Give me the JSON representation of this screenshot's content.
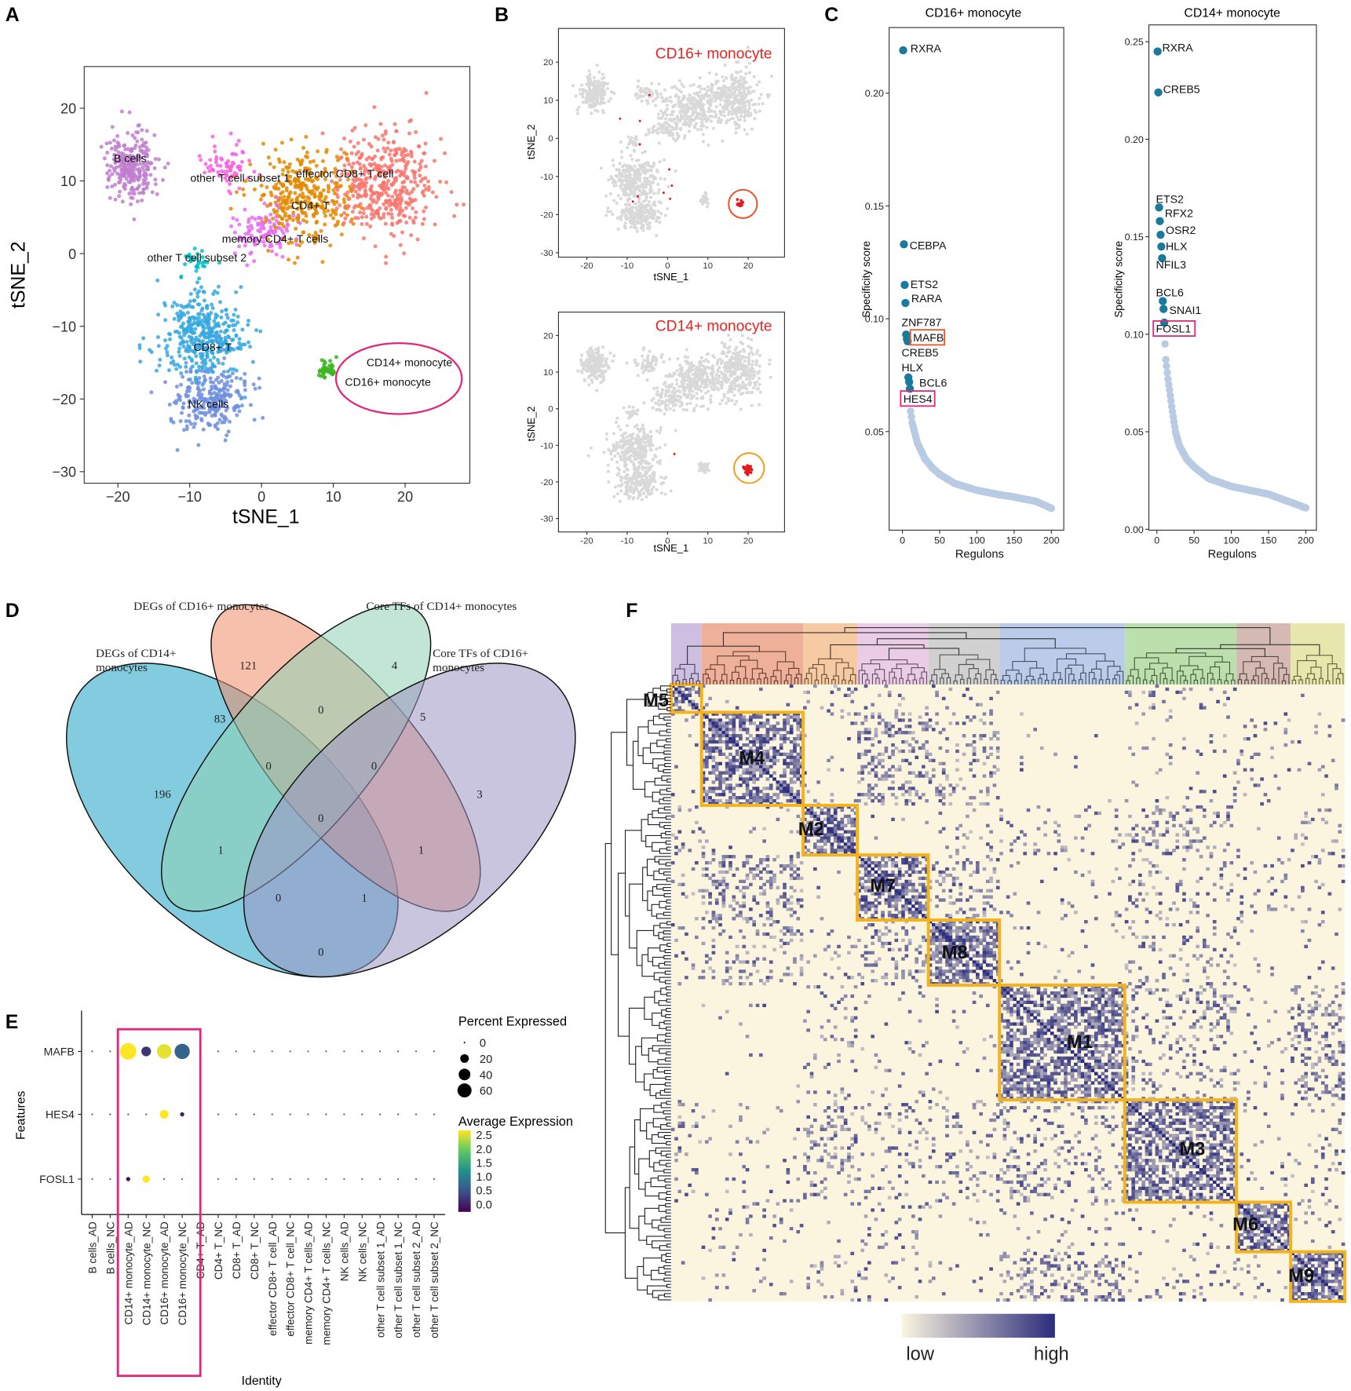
{
  "panel_labels": {
    "a": "A",
    "b": "B",
    "c": "C",
    "d": "D",
    "e": "E",
    "f": "F"
  },
  "chart_data": [
    {
      "id": "A",
      "type": "scatter",
      "xlabel": "tSNE_1",
      "ylabel": "tSNE_2",
      "xticks": [
        -20,
        -10,
        0,
        10,
        20
      ],
      "yticks": [
        20,
        10,
        0,
        -10,
        -20,
        -30
      ],
      "clusters": [
        {
          "name": "B cells",
          "color": "#c07ecf",
          "center": [
            -18,
            12
          ],
          "spread": [
            3,
            4.2
          ],
          "n": 260
        },
        {
          "name": "other T cell subset 1",
          "color": "#f564e3",
          "center": [
            -5,
            12
          ],
          "spread": [
            3,
            3
          ],
          "n": 70
        },
        {
          "name": "effector CD8+ T cell",
          "color": "#f8766d",
          "center": [
            17,
            10
          ],
          "spread": [
            6,
            6.5
          ],
          "n": 420
        },
        {
          "name": "CD4+ T",
          "color": "#e38900",
          "center": [
            6,
            8
          ],
          "spread": [
            6,
            5.5
          ],
          "n": 330
        },
        {
          "name": "memory CD4+ T cells",
          "color": "#e76bf3",
          "center": [
            0,
            3
          ],
          "spread": [
            4,
            3
          ],
          "n": 110
        },
        {
          "name": "other T cell subset 2",
          "color": "#00bfc4",
          "center": [
            -9,
            -1
          ],
          "spread": [
            2,
            1.5
          ],
          "n": 30
        },
        {
          "name": "CD8+ T",
          "color": "#35a8e0",
          "center": [
            -8,
            -11
          ],
          "spread": [
            5.5,
            5
          ],
          "n": 380
        },
        {
          "name": "NK cells",
          "color": "#6f8fe0",
          "center": [
            -7,
            -20
          ],
          "spread": [
            5,
            4
          ],
          "n": 260
        },
        {
          "name": "monocytes",
          "color": "#3cb521",
          "center": [
            9,
            -16
          ],
          "spread": [
            1,
            1.2
          ],
          "n": 45
        }
      ],
      "labels": [
        {
          "text": "B cells",
          "x": -18.3,
          "y": 12.6
        },
        {
          "text": "other T cell subset 1",
          "x": -3,
          "y": 9.9
        },
        {
          "text": "effector CD8+ T cell",
          "x": 11.6,
          "y": 10.5
        },
        {
          "text": "CD4+ T",
          "x": 6.8,
          "y": 6.1
        },
        {
          "text": "memory CD4+ T cells",
          "x": 1.9,
          "y": 1.5
        },
        {
          "text": "other T cell subset 2",
          "x": -9,
          "y": -1.1
        },
        {
          "text": "CD8+ T",
          "x": -6.8,
          "y": -13.4
        },
        {
          "text": "NK cells",
          "x": -7.4,
          "y": -21.2
        },
        {
          "text": "CD14+ monocyte",
          "x": 20.6,
          "y": -15.5
        },
        {
          "text": "CD16+ monocyte",
          "x": 17.6,
          "y": -18.2
        }
      ],
      "highlight_ellipse_color": "#e0267d"
    },
    {
      "id": "B1",
      "type": "scatter",
      "title": "CD16+ monocyte",
      "title_color": "#e8231f",
      "xlabel": "tSNE_1",
      "ylabel": "tSNE_2",
      "xticks": [
        -20,
        -10,
        0,
        10,
        20
      ],
      "yticks": [
        20,
        10,
        0,
        -10,
        -20,
        -30
      ],
      "background_color": "#d9d9d9",
      "highlight_color": "#e41a1c",
      "circle_color": "#e8562a"
    },
    {
      "id": "B2",
      "type": "scatter",
      "title": "CD14+ monocyte",
      "title_color": "#e8231f",
      "xlabel": "tSNE_1",
      "ylabel": "tSNE_2",
      "xticks": [
        -20,
        -10,
        0,
        10,
        20
      ],
      "yticks": [
        20,
        10,
        0,
        -10,
        -20,
        -30
      ],
      "background_color": "#d9d9d9",
      "highlight_color": "#e41a1c",
      "circle_color": "#f0a020"
    },
    {
      "id": "C1",
      "type": "scatter",
      "title": "CD16+ monocyte",
      "xlabel": "Regulons",
      "ylabel": "Specificity score",
      "xticks": [
        0,
        50,
        100,
        150,
        200
      ],
      "yticks": [
        0.05,
        0.1,
        0.15,
        0.2
      ],
      "ytick_labels": [
        "0.05",
        "0.10",
        "0.15",
        "0.20"
      ],
      "top_color": "#1a7a9c",
      "rest_color": "#b9cbe3",
      "labeled": [
        {
          "name": "RXRA",
          "rank": 1,
          "score": 0.219
        },
        {
          "name": "CEBPA",
          "rank": 2,
          "score": 0.133
        },
        {
          "name": "ETS2",
          "rank": 3,
          "score": 0.115
        },
        {
          "name": "RARA",
          "rank": 4,
          "score": 0.107
        },
        {
          "name": "ZNF787",
          "rank": 5,
          "score": 0.093
        },
        {
          "name": "MAFB",
          "rank": 6,
          "score": 0.091
        },
        {
          "name": "CREB5",
          "rank": 7,
          "score": 0.09
        },
        {
          "name": "HLX",
          "rank": 8,
          "score": 0.074
        },
        {
          "name": "BCL6",
          "rank": 9,
          "score": 0.072
        },
        {
          "name": "HES4",
          "rank": 10,
          "score": 0.069
        }
      ],
      "tail": [
        [
          11,
          0.059
        ],
        [
          13,
          0.054
        ],
        [
          20,
          0.045
        ],
        [
          30,
          0.038
        ],
        [
          40,
          0.034
        ],
        [
          50,
          0.031
        ],
        [
          70,
          0.027
        ],
        [
          100,
          0.024
        ],
        [
          130,
          0.022
        ],
        [
          150,
          0.021
        ],
        [
          180,
          0.019
        ],
        [
          200,
          0.016
        ]
      ],
      "boxed": [
        {
          "name": "MAFB",
          "color": "#e8562a"
        },
        {
          "name": "HES4",
          "color": "#e0267d"
        }
      ]
    },
    {
      "id": "C2",
      "type": "scatter",
      "title": "CD14+ monocyte",
      "xlabel": "Regulons",
      "ylabel": "Specificity score",
      "xticks": [
        0,
        50,
        100,
        150,
        200
      ],
      "yticks": [
        0.0,
        0.05,
        0.1,
        0.15,
        0.2,
        0.25
      ],
      "ytick_labels": [
        "0.00",
        "0.05",
        "0.10",
        "0.15",
        "0.20",
        "0.25"
      ],
      "top_color": "#1a7a9c",
      "rest_color": "#b9cbe3",
      "labeled": [
        {
          "name": "RXRA",
          "rank": 1,
          "score": 0.245
        },
        {
          "name": "CREB5",
          "rank": 2,
          "score": 0.224
        },
        {
          "name": "ETS2",
          "rank": 3,
          "score": 0.165
        },
        {
          "name": "RFX2",
          "rank": 4,
          "score": 0.158
        },
        {
          "name": "OSR2",
          "rank": 5,
          "score": 0.151
        },
        {
          "name": "HLX",
          "rank": 6,
          "score": 0.145
        },
        {
          "name": "NFIL3",
          "rank": 7,
          "score": 0.139
        },
        {
          "name": "BCL6",
          "rank": 8,
          "score": 0.117
        },
        {
          "name": "SNAI1",
          "rank": 9,
          "score": 0.113
        },
        {
          "name": "FOSL1",
          "rank": 10,
          "score": 0.106
        }
      ],
      "tail": [
        [
          11,
          0.095
        ],
        [
          12,
          0.087
        ],
        [
          15,
          0.077
        ],
        [
          20,
          0.063
        ],
        [
          25,
          0.05
        ],
        [
          30,
          0.043
        ],
        [
          40,
          0.036
        ],
        [
          50,
          0.032
        ],
        [
          70,
          0.026
        ],
        [
          100,
          0.022
        ],
        [
          150,
          0.018
        ],
        [
          200,
          0.011
        ]
      ],
      "boxed": [
        {
          "name": "FOSL1",
          "color": "#e0267d"
        }
      ]
    },
    {
      "id": "D",
      "type": "venn",
      "sets": [
        {
          "key": "B",
          "name_lines": [
            "DEGs of CD14+",
            "monocytes"
          ],
          "color": "#1ea2c6"
        },
        {
          "key": "S",
          "name_lines": [
            "DEGs of CD16+ monocytes"
          ],
          "color": "#f08c6a"
        },
        {
          "key": "G",
          "name_lines": [
            "Core TFs of CD14+ monocytes"
          ],
          "color": "#8fd0b4"
        },
        {
          "key": "P",
          "name_lines": [
            "Core TFs of CD16+",
            "monocytes"
          ],
          "color": "#9c95c2"
        }
      ],
      "regions": [
        {
          "sets": "S",
          "value": 121
        },
        {
          "sets": "G",
          "value": 4
        },
        {
          "sets": "BS",
          "value": 83
        },
        {
          "sets": "SG",
          "value": 0
        },
        {
          "sets": "GP",
          "value": 5
        },
        {
          "sets": "B",
          "value": 196
        },
        {
          "sets": "BSG",
          "value": 0
        },
        {
          "sets": "SGP",
          "value": 0
        },
        {
          "sets": "P",
          "value": 3
        },
        {
          "sets": "BSGP",
          "value": 0
        },
        {
          "sets": "BG",
          "value": 1
        },
        {
          "sets": "SP",
          "value": 1
        },
        {
          "sets": "BGP",
          "value": 0
        },
        {
          "sets": "BSP",
          "value": 1
        },
        {
          "sets": "BP",
          "value": 0
        }
      ]
    },
    {
      "id": "E",
      "type": "dotplot",
      "xlabel": "Identity",
      "ylabel": "Features",
      "features": [
        "MAFB",
        "HES4",
        "FOSL1"
      ],
      "identities": [
        "B cells_AD",
        "B cells_NC",
        "CD14+ monocyte_AD",
        "CD14+ monocyte_NC",
        "CD16+ monocyte_AD",
        "CD16+ monocyte_NC",
        "CD4+ T_AD",
        "CD4+ T_NC",
        "CD8+ T_AD",
        "CD8+ T_NC",
        "effector CD8+ T cell_AD",
        "effector CD8+ T cell_NC",
        "memory CD4+ T cells_AD",
        "memory CD4+ T cells_NC",
        "NK cells_AD",
        "NK cells_NC",
        "other T cell subset 1_AD",
        "other T cell subset 1_NC",
        "other T cell subset 2_AD",
        "other T cell subset 2_NC"
      ],
      "percent_expressed": [
        [
          0,
          0,
          60,
          18,
          45,
          50,
          0,
          0,
          0,
          0,
          0,
          0,
          0,
          0,
          0,
          0,
          0,
          0,
          0,
          0
        ],
        [
          0,
          0,
          0,
          0,
          14,
          2,
          0,
          0,
          0,
          0,
          0,
          0,
          0,
          0,
          0,
          0,
          0,
          0,
          0,
          0
        ],
        [
          0,
          0,
          2,
          9,
          0,
          0,
          0,
          0,
          0,
          0,
          0,
          0,
          0,
          0,
          0,
          0,
          0,
          0,
          0,
          0
        ]
      ],
      "average_expression": [
        [
          0,
          0,
          2.5,
          0.4,
          2.4,
          0.8,
          0,
          0,
          0,
          0,
          0,
          0,
          0,
          0,
          0,
          0,
          0,
          0,
          0,
          0
        ],
        [
          0,
          0,
          0,
          0,
          2.5,
          0.2,
          0,
          0,
          0,
          0,
          0,
          0,
          0,
          0,
          0,
          0,
          0,
          0,
          0,
          0
        ],
        [
          0,
          0,
          0.1,
          2.5,
          0,
          0,
          0,
          0,
          0,
          0,
          0,
          0,
          0,
          0,
          0,
          0,
          0,
          0,
          0,
          0
        ]
      ],
      "legend_size_title": "Percent Expressed",
      "legend_size_values": [
        0,
        20,
        40,
        60
      ],
      "legend_color_title": "Average Expression",
      "legend_color_ticks": [
        "2.5",
        "2.0",
        "1.5",
        "1.0",
        "0.5",
        "0.0"
      ],
      "color_range": [
        0,
        2.5
      ],
      "highlight_box_color": "#e0267d"
    },
    {
      "id": "F",
      "type": "heatmap",
      "modules": [
        {
          "name": "M5",
          "size": 9,
          "color": "#b9a4d6"
        },
        {
          "name": "M4",
          "size": 30,
          "color": "#e88f6e"
        },
        {
          "name": "M2",
          "size": 16,
          "color": "#f2b37c"
        },
        {
          "name": "M7",
          "size": 21,
          "color": "#e3b6dc"
        },
        {
          "name": "M8",
          "size": 21,
          "color": "#bdbdbd"
        },
        {
          "name": "M1",
          "size": 37,
          "color": "#9db6e0"
        },
        {
          "name": "M3",
          "size": 33,
          "color": "#9fd28c"
        },
        {
          "name": "M6",
          "size": 16,
          "color": "#c29d92"
        },
        {
          "name": "M9",
          "size": 16,
          "color": "#dddb8a"
        }
      ],
      "module_box_color": "#f5b21b",
      "low_color": "#fbf5e0",
      "high_color": "#2b2c7c",
      "legend_low": "low",
      "legend_high": "high"
    }
  ]
}
